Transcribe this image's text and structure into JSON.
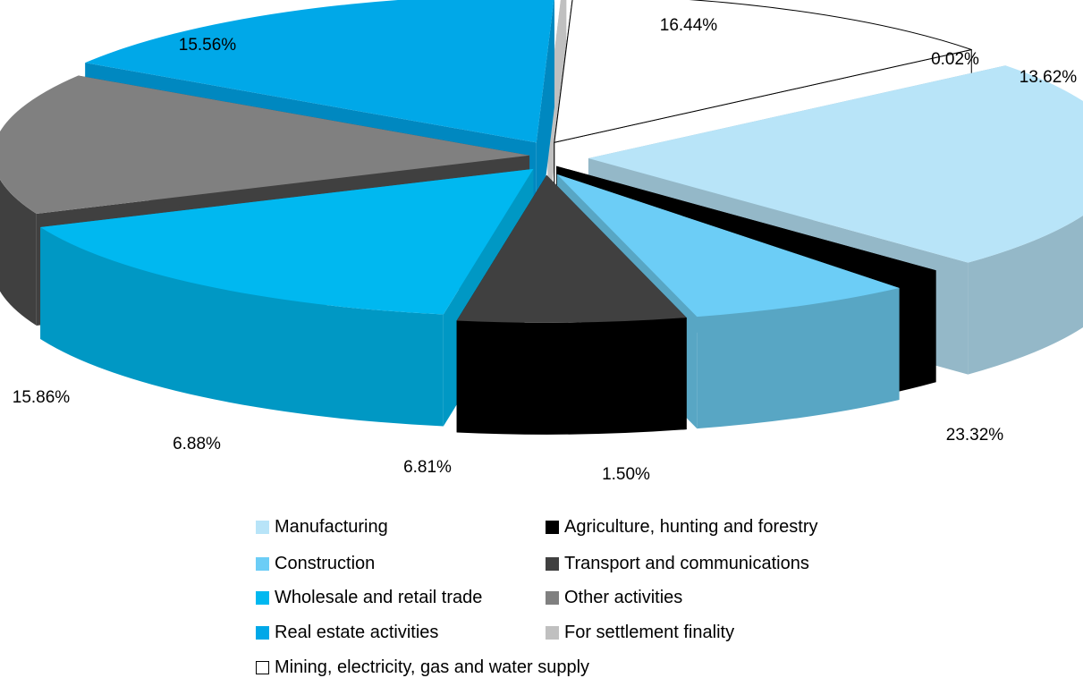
{
  "chart_data": {
    "type": "pie",
    "style": "3d-exploded",
    "title": "",
    "slices": [
      {
        "name": "Mining, electricity, gas and water supply",
        "value": 13.62,
        "label": "13.62%",
        "color": "#ffffff",
        "side": "#ffffff"
      },
      {
        "name": "Manufacturing",
        "value": 23.32,
        "label": "23.32%",
        "color": "#b8e4f8",
        "side": "#94b8c8"
      },
      {
        "name": "Agriculture, hunting and forestry",
        "value": 1.5,
        "label": "1.50%",
        "color": "#000000",
        "side": "#000000"
      },
      {
        "name": "Construction",
        "value": 6.81,
        "label": "6.81%",
        "color": "#6ccdf6",
        "side": "#58a6c4"
      },
      {
        "name": "Transport and communications",
        "value": 6.88,
        "label": "6.88%",
        "color": "#404040",
        "side": "#000000"
      },
      {
        "name": "Wholesale and retail trade",
        "value": 15.86,
        "label": "15.86%",
        "color": "#00b8f0",
        "side": "#0098c4"
      },
      {
        "name": "Other activities",
        "value": 15.56,
        "label": "15.56%",
        "color": "#808080",
        "side": "#404040"
      },
      {
        "name": "Real estate activities",
        "value": 16.44,
        "label": "16.44%",
        "color": "#00a8e8",
        "side": "#0088c0"
      },
      {
        "name": "For settlement finality",
        "value": 0.02,
        "label": "0.02%",
        "color": "#c0c0c0",
        "side": "#c0c0c0"
      }
    ],
    "legend": {
      "placement": "bottom",
      "columns": [
        [
          "Manufacturing",
          "Construction",
          "Wholesale and retail trade",
          "Real estate activities",
          "Mining, electricity, gas and water supply"
        ],
        [
          "Agriculture, hunting and forestry",
          "Transport and communications",
          "Other activities",
          "For settlement finality"
        ]
      ]
    }
  }
}
